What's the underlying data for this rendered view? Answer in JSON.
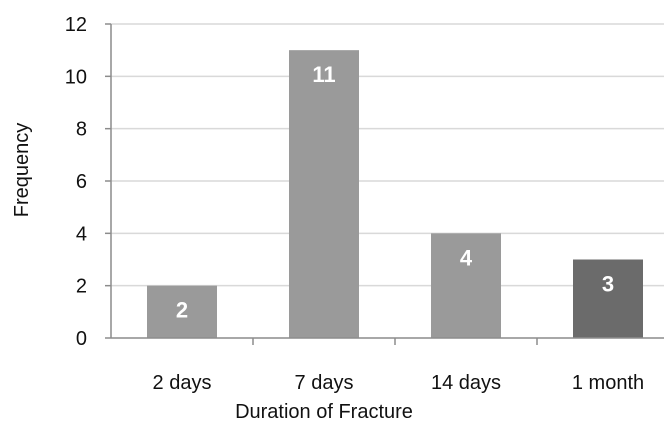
{
  "chart_data": {
    "type": "bar",
    "categories": [
      "2 days",
      "7 days",
      "14 days",
      "1 month"
    ],
    "values": [
      2,
      11,
      4,
      3
    ],
    "data_labels": [
      "2",
      "11",
      "4",
      "3"
    ],
    "bar_colors": [
      "#9a9a9a",
      "#9a9a9a",
      "#9a9a9a",
      "#6b6b6b"
    ],
    "gridline_color": "#d9d9d9",
    "axis_color": "#8c8c8c",
    "title": "",
    "xlabel": "Duration of Fracture",
    "ylabel": "Frequency",
    "ylim": [
      0,
      12
    ],
    "yticks": [
      "0",
      "2",
      "4",
      "6",
      "8",
      "10",
      "12"
    ],
    "grid": true,
    "legend": "none"
  }
}
